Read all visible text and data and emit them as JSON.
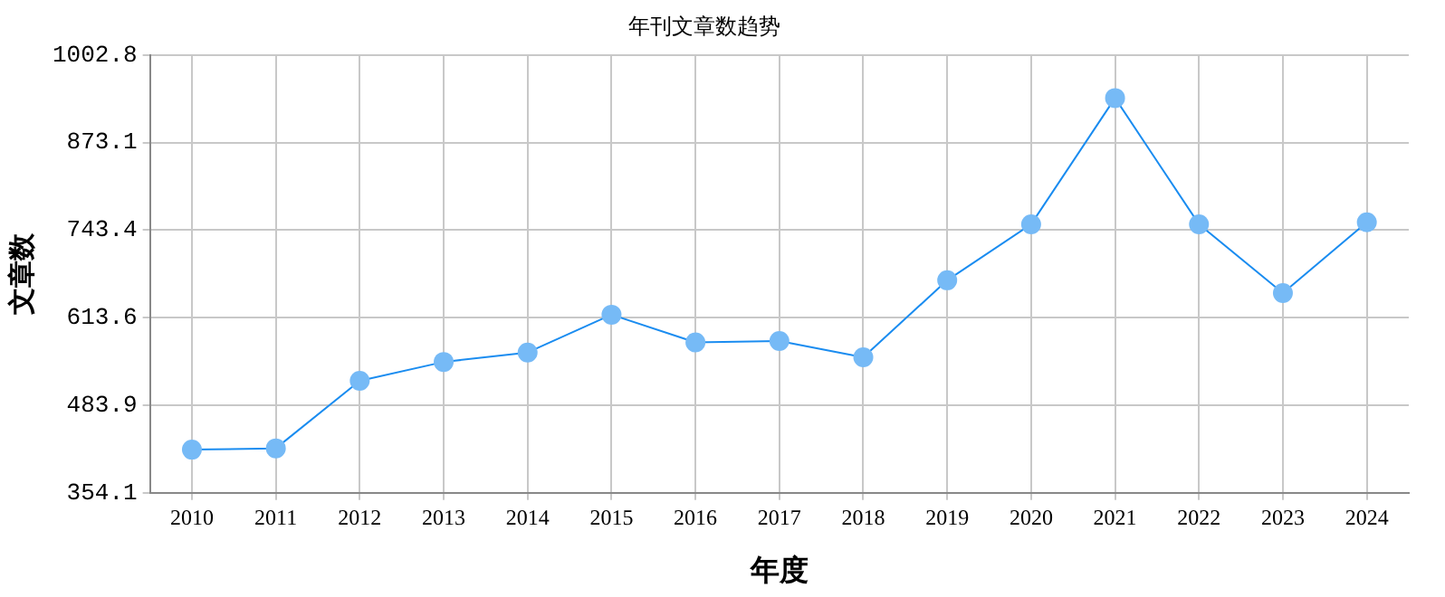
{
  "chart_data": {
    "type": "line",
    "title": "年刊文章数趋势",
    "xlabel": "年度",
    "ylabel": "文章数",
    "categories": [
      "2010",
      "2011",
      "2012",
      "2013",
      "2014",
      "2015",
      "2016",
      "2017",
      "2018",
      "2019",
      "2020",
      "2021",
      "2022",
      "2023",
      "2024"
    ],
    "series": [
      {
        "color": "#1a8cf0",
        "values": [
          418,
          420,
          520,
          548,
          562,
          618,
          577,
          579,
          555,
          669,
          752,
          939,
          752,
          650,
          755
        ]
      }
    ],
    "ylim": [
      354.1,
      1002.8
    ],
    "yticks": [
      {
        "value": 354.1,
        "label": "354.1"
      },
      {
        "value": 483.9,
        "label": "483.9"
      },
      {
        "value": 613.6,
        "label": "613.6"
      },
      {
        "value": 743.4,
        "label": "743.4"
      },
      {
        "value": 873.1,
        "label": "873.1"
      },
      {
        "value": 1002.8,
        "label": "1002.8"
      }
    ],
    "grid": true,
    "legend": false,
    "marker": "circle",
    "line_style": "solid"
  }
}
